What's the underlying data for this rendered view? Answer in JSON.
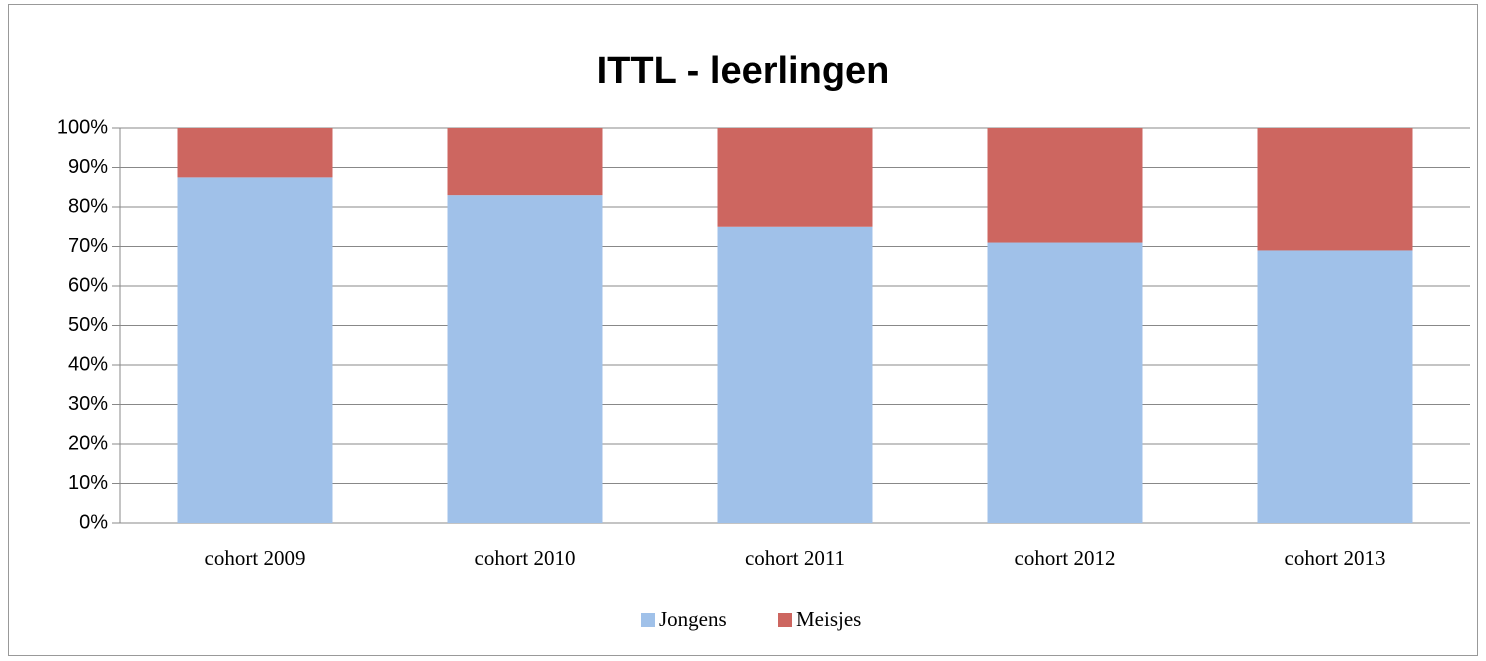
{
  "chart_data": {
    "type": "stacked_bar",
    "title": "ITTL - leerlingen",
    "categories": [
      "cohort 2009",
      "cohort 2010",
      "cohort 2011",
      "cohort 2012",
      "cohort 2013"
    ],
    "series": [
      {
        "name": "Jongens",
        "color": "#a0c1e9",
        "values": [
          87.5,
          83,
          75,
          71,
          69
        ]
      },
      {
        "name": "Meisjes",
        "color": "#cd6660",
        "values": [
          12.5,
          17,
          25,
          29,
          31
        ]
      }
    ],
    "ylim": [
      0,
      100
    ],
    "yticks": [
      {
        "value": 0,
        "label": "0%"
      },
      {
        "value": 10,
        "label": "10%"
      },
      {
        "value": 20,
        "label": "20%"
      },
      {
        "value": 30,
        "label": "30%"
      },
      {
        "value": 40,
        "label": "40%"
      },
      {
        "value": 50,
        "label": "50%"
      },
      {
        "value": 60,
        "label": "60%"
      },
      {
        "value": 70,
        "label": "70%"
      },
      {
        "value": 80,
        "label": "80%"
      },
      {
        "value": 90,
        "label": "90%"
      },
      {
        "value": 100,
        "label": "100%"
      }
    ],
    "grid": true,
    "legend": "bottom"
  }
}
